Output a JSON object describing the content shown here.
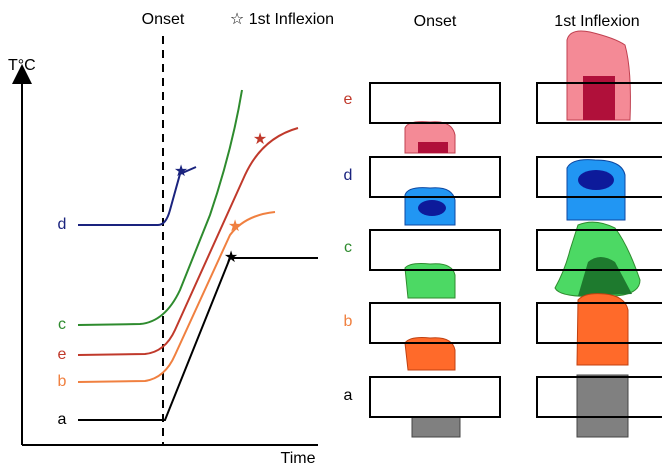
{
  "plot": {
    "y_axis_label": "T°C",
    "x_axis_label": "Time",
    "onset_label": "Onset",
    "inflexion_label": "☆ 1st Inflexion",
    "curve_labels": [
      "d",
      "c",
      "e",
      "b",
      "a"
    ]
  },
  "panels": {
    "column_headers": [
      "Onset",
      "1st Inflexion"
    ],
    "row_labels": [
      "e",
      "d",
      "c",
      "b",
      "a"
    ]
  }
}
